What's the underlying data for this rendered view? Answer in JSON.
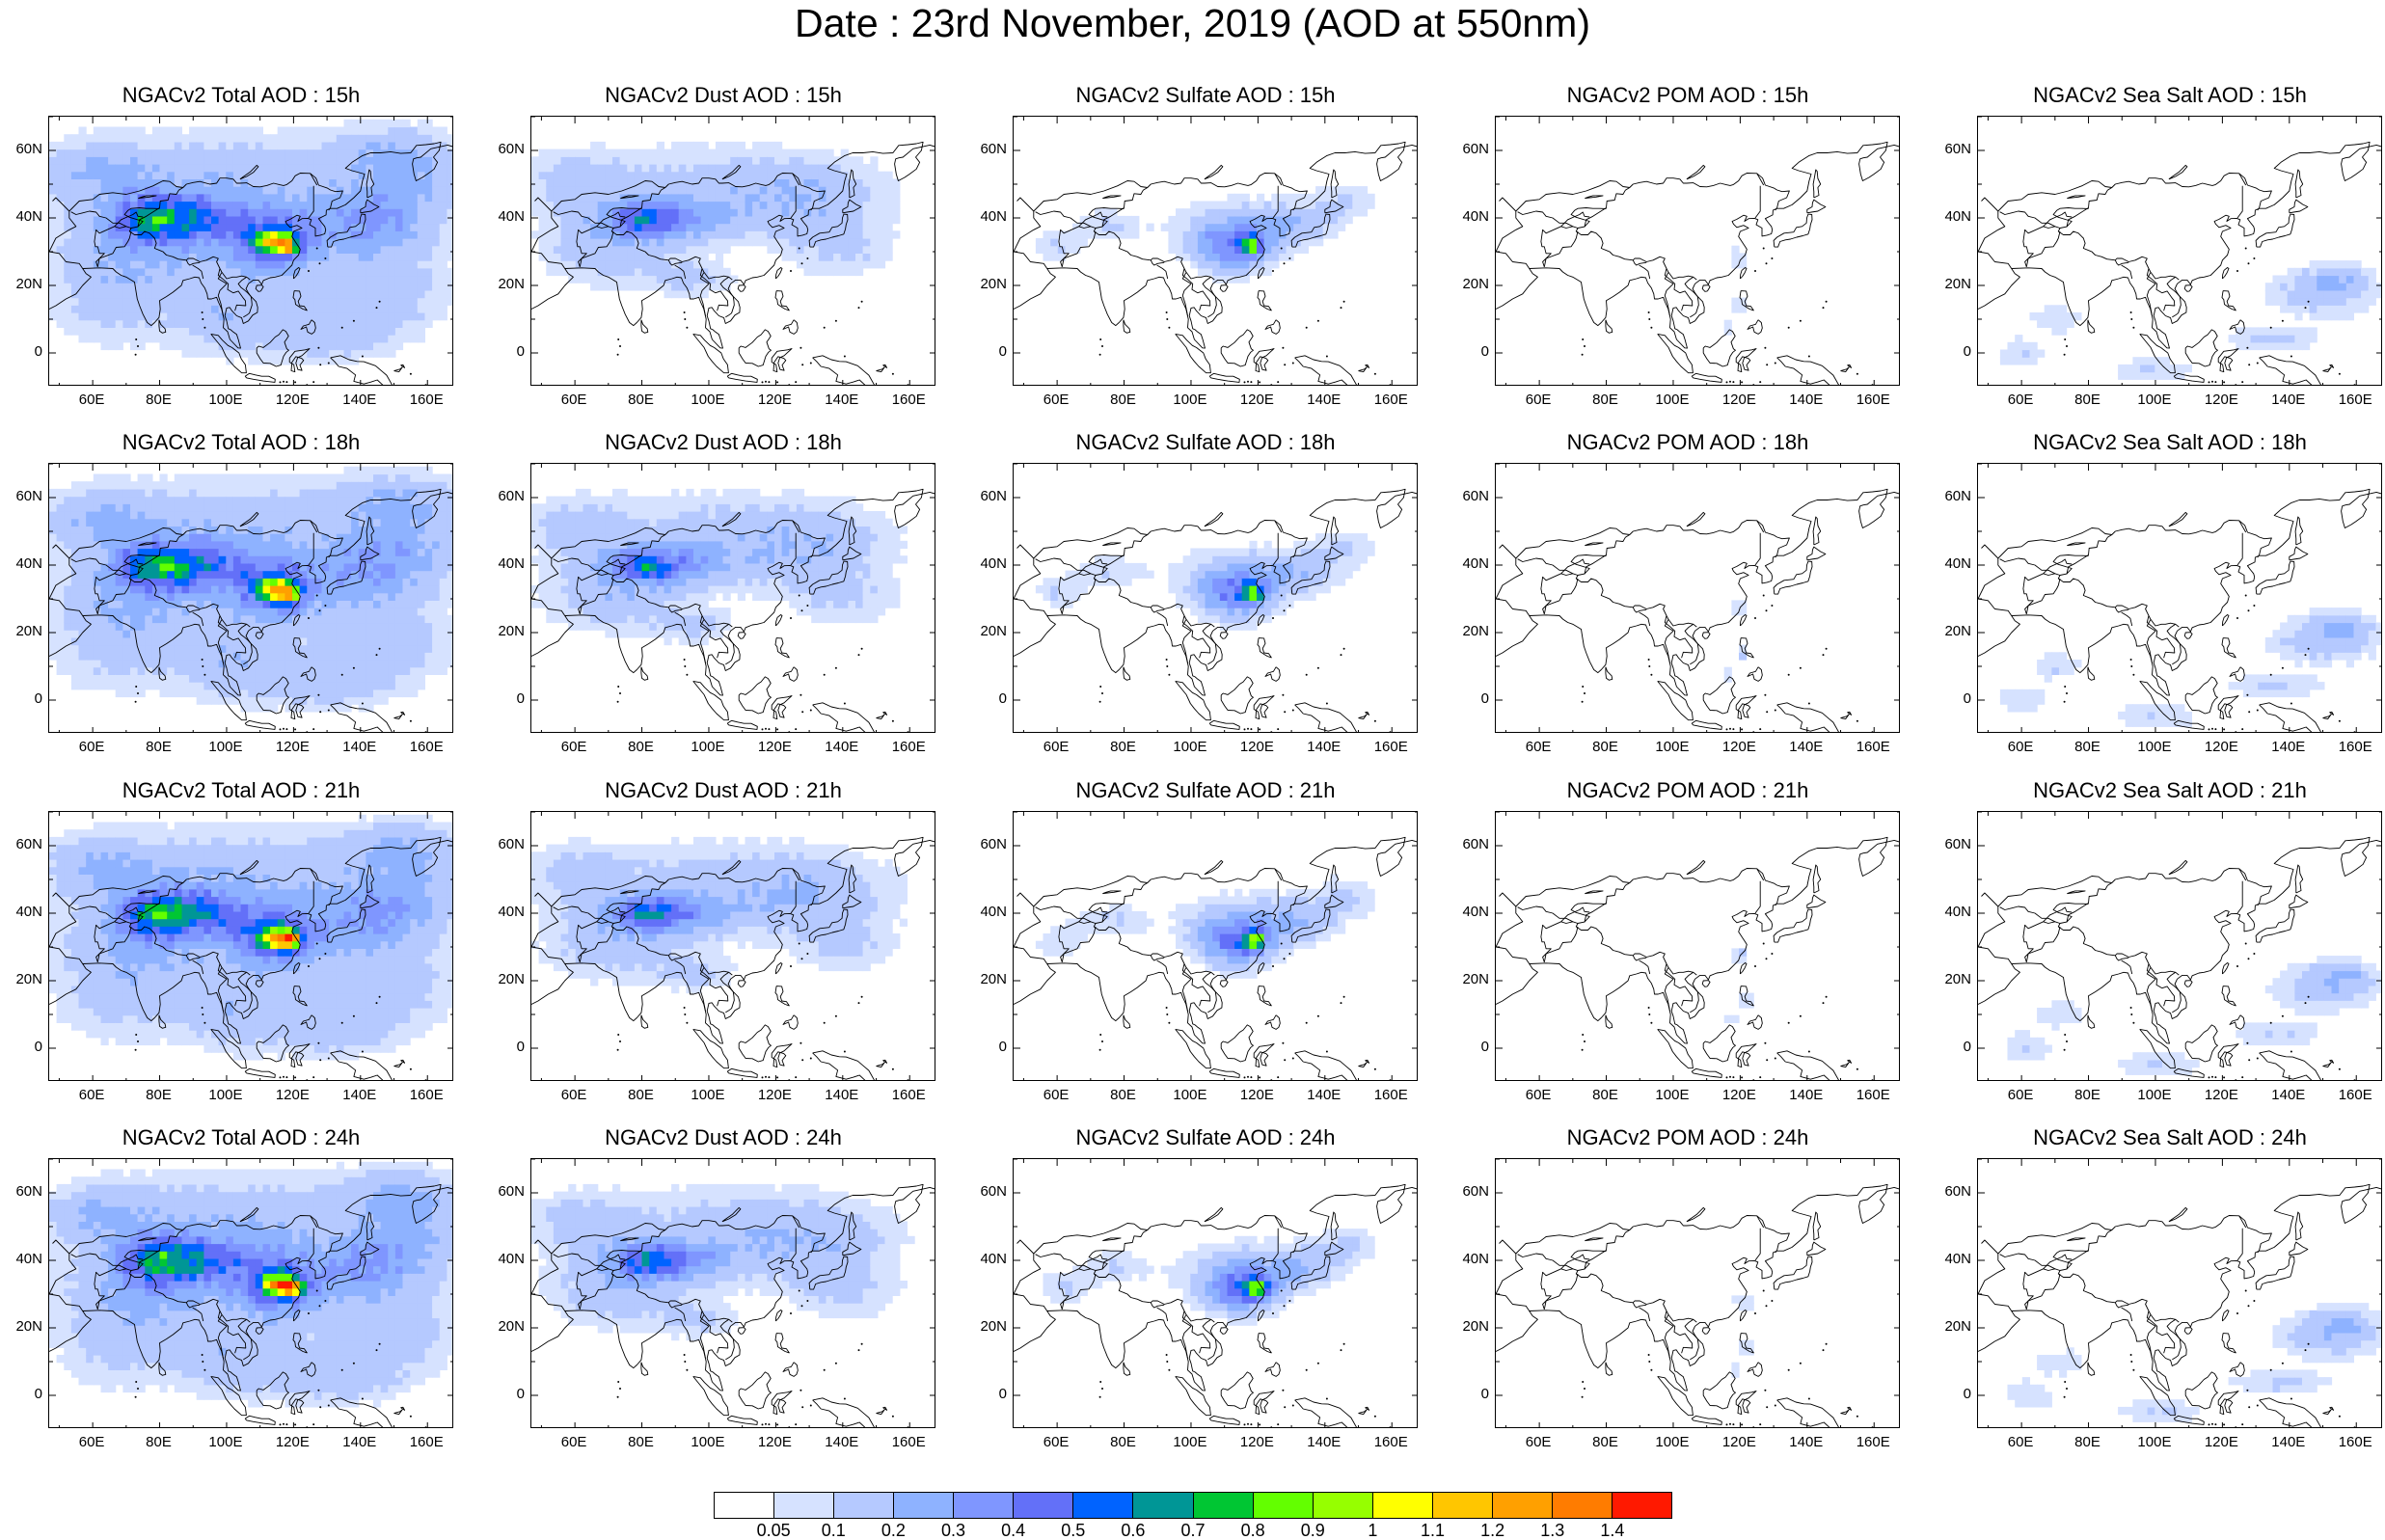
{
  "title": "Date : 23rd November, 2019 (AOD at 550nm)",
  "axes": {
    "x_ticks": [
      "60E",
      "80E",
      "100E",
      "120E",
      "140E",
      "160E"
    ],
    "y_ticks": [
      "60N",
      "40N",
      "20N",
      "0"
    ]
  },
  "rows": [
    {
      "hour": "15h",
      "panels": [
        {
          "species": "total",
          "title": "NGACv2 Total AOD : 15h"
        },
        {
          "species": "dust",
          "title": "NGACv2 Dust AOD : 15h"
        },
        {
          "species": "sulfate",
          "title": "NGACv2 Sulfate AOD : 15h"
        },
        {
          "species": "pom",
          "title": "NGACv2 POM AOD : 15h"
        },
        {
          "species": "seasalt",
          "title": "NGACv2 Sea Salt AOD : 15h"
        }
      ]
    },
    {
      "hour": "18h",
      "panels": [
        {
          "species": "total",
          "title": "NGACv2 Total AOD : 18h"
        },
        {
          "species": "dust",
          "title": "NGACv2 Dust AOD : 18h"
        },
        {
          "species": "sulfate",
          "title": "NGACv2 Sulfate AOD : 18h"
        },
        {
          "species": "pom",
          "title": "NGACv2 POM AOD : 18h"
        },
        {
          "species": "seasalt",
          "title": "NGACv2 Sea Salt AOD : 18h"
        }
      ]
    },
    {
      "hour": "21h",
      "panels": [
        {
          "species": "total",
          "title": "NGACv2 Total AOD : 21h"
        },
        {
          "species": "dust",
          "title": "NGACv2 Dust AOD : 21h"
        },
        {
          "species": "sulfate",
          "title": "NGACv2 Sulfate AOD : 21h"
        },
        {
          "species": "pom",
          "title": "NGACv2 POM AOD : 21h"
        },
        {
          "species": "seasalt",
          "title": "NGACv2 Sea Salt AOD : 21h"
        }
      ]
    },
    {
      "hour": "24h",
      "panels": [
        {
          "species": "total",
          "title": "NGACv2 Total AOD : 24h"
        },
        {
          "species": "dust",
          "title": "NGACv2 Dust AOD : 24h"
        },
        {
          "species": "sulfate",
          "title": "NGACv2 Sulfate AOD : 24h"
        },
        {
          "species": "pom",
          "title": "NGACv2 POM AOD : 24h"
        },
        {
          "species": "seasalt",
          "title": "NGACv2 Sea Salt  AOD : 24h"
        }
      ]
    }
  ],
  "colorbar": {
    "labels": [
      "0.05",
      "0.1",
      "0.2",
      "0.3",
      "0.4",
      "0.5",
      "0.6",
      "0.7",
      "0.8",
      "0.9",
      "1",
      "1.1",
      "1.2",
      "1.3",
      "1.4"
    ],
    "colors": [
      "#ffffff",
      "#d6e2ff",
      "#b5c9ff",
      "#8eb2ff",
      "#7f96ff",
      "#6370f8",
      "#0063ff",
      "#009696",
      "#00c633",
      "#63ff00",
      "#96ff00",
      "#ffff00",
      "#ffc600",
      "#ffa000",
      "#ff7c00",
      "#ff1900"
    ]
  }
}
